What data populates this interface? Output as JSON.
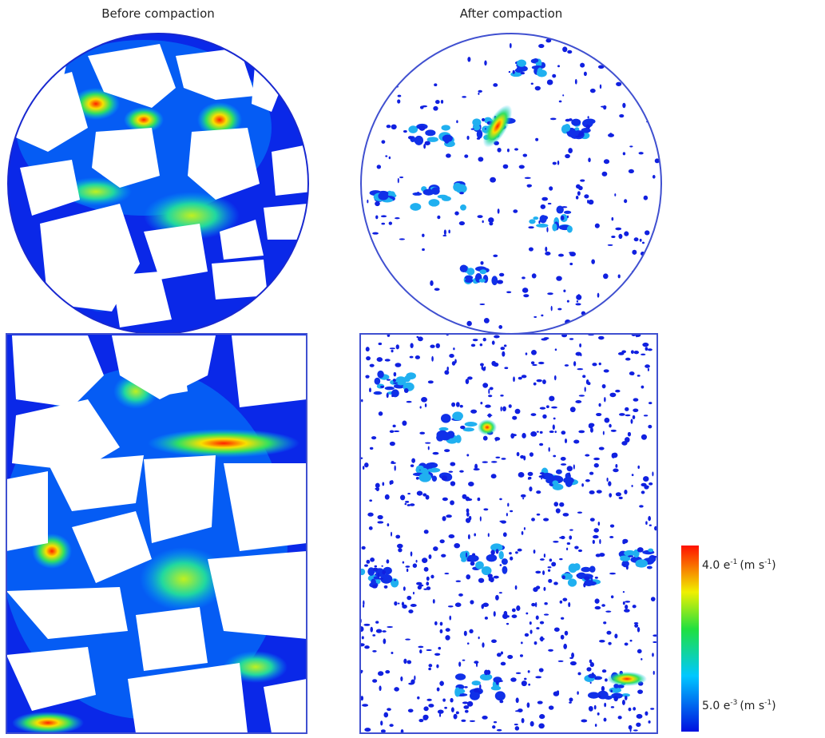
{
  "panels": {
    "before_title": "Before compaction",
    "after_title": "After compaction"
  },
  "colorbar": {
    "max_label": {
      "base": "4.0 e",
      "exp": "-1",
      "unit": "(m s",
      "unit_exp": "-1",
      "close": ")"
    },
    "min_label": {
      "base": "5.0 e",
      "exp": "-3",
      "unit": "(m s",
      "unit_exp": "-1",
      "close": ")"
    }
  }
}
